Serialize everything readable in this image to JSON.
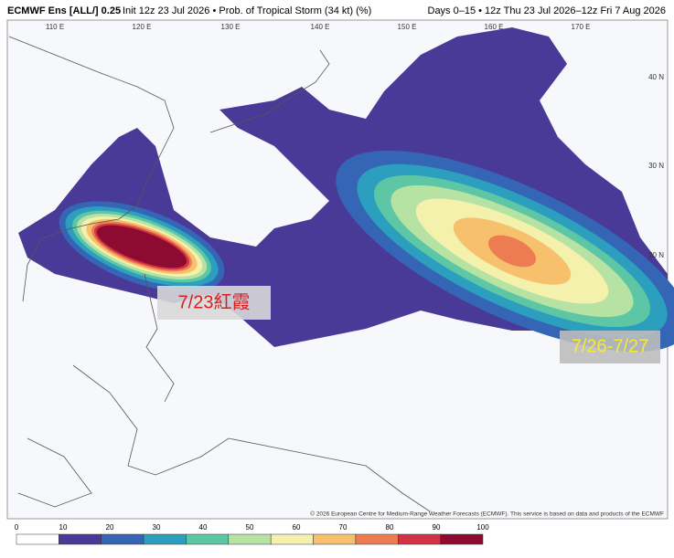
{
  "header": {
    "model": "ECMWF Ens [ALL/] 0.25",
    "init": "Init 12z 23 Jul 2026 • Prob. of Tropical Storm (34 kt) (%)",
    "days": "Days 0–15 • 12z Thu 23 Jul 2026–12z Fri 7 Aug 2026"
  },
  "map": {
    "longitude_labels": [
      "110 E",
      "120 E",
      "130 E",
      "140 E",
      "150 E",
      "160 E",
      "170 E"
    ],
    "latitude_labels": [
      "40 N",
      "30 N",
      "20 N"
    ],
    "annotations": [
      "7/23紅霞",
      "7/26-7/27"
    ],
    "credit": "© 2026 European Centre for Medium-Range Weather Forecasts (ECMWF). This service is based on data and products of the ECMWF"
  },
  "legend": {
    "ticks": [
      0,
      10,
      20,
      30,
      40,
      50,
      60,
      70,
      80,
      90,
      100
    ],
    "colors": [
      "#ffffff",
      "#4a3a97",
      "#3566b6",
      "#2c9fbe",
      "#5cc6a5",
      "#b6e3a3",
      "#f4f1ad",
      "#f6c06c",
      "#ee7c52",
      "#d23345",
      "#8d0b30"
    ]
  }
}
